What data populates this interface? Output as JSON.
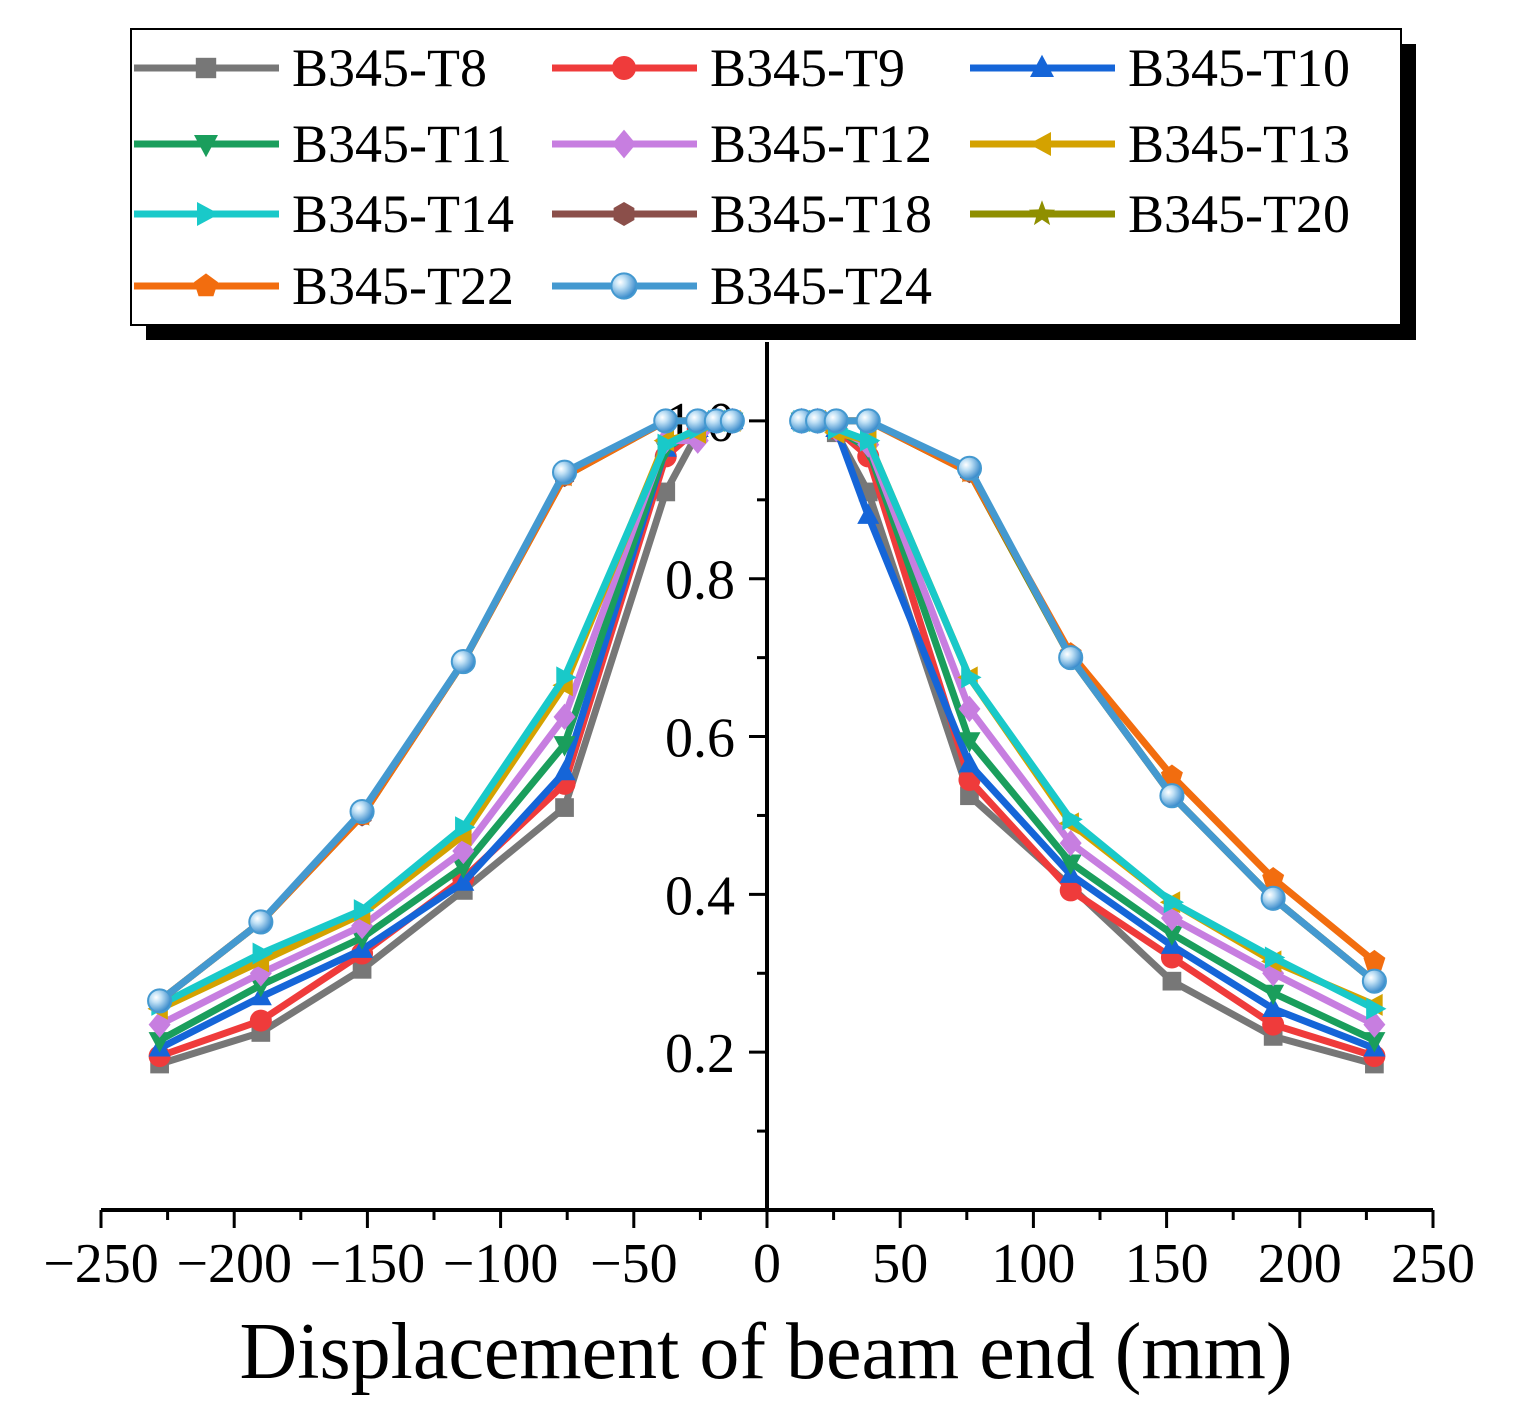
{
  "chart_data": {
    "type": "line",
    "title": "",
    "xlabel": "Displacement of beam end (mm)",
    "ylabel": "",
    "xlim": [
      -250,
      250
    ],
    "ylim": [
      0,
      1.1
    ],
    "x_ticks": [
      "−250",
      "−200",
      "−150",
      "−100",
      "−50",
      "0",
      "50",
      "100",
      "150",
      "200",
      "250"
    ],
    "x_tick_values": [
      -250,
      -200,
      -150,
      -100,
      -50,
      0,
      50,
      100,
      150,
      200,
      250
    ],
    "y_ticks": [
      "0.2",
      "0.4",
      "0.6",
      "0.8",
      "1.0"
    ],
    "y_tick_values": [
      0.2,
      0.4,
      0.6,
      0.8,
      1.0
    ],
    "legend_position": "top",
    "series": [
      {
        "name": "B345-T8",
        "color": "#777777",
        "marker": "square",
        "x": [
          -228,
          -190,
          -152,
          -114,
          -76,
          -38,
          -26,
          -19,
          -13,
          13,
          19,
          26,
          38,
          76,
          114,
          152,
          190,
          228
        ],
        "y": [
          0.185,
          0.225,
          0.305,
          0.405,
          0.51,
          0.91,
          0.985,
          1.0,
          1.0,
          1.0,
          1.0,
          0.985,
          0.91,
          0.525,
          0.41,
          0.29,
          0.22,
          0.185
        ]
      },
      {
        "name": "B345-T9",
        "color": "#ef3b3b",
        "marker": "circle",
        "x": [
          -228,
          -190,
          -152,
          -114,
          -76,
          -38,
          -26,
          -19,
          -13,
          13,
          19,
          26,
          38,
          76,
          114,
          152,
          190,
          228
        ],
        "y": [
          0.195,
          0.24,
          0.325,
          0.42,
          0.54,
          0.955,
          0.99,
          1.0,
          1.0,
          1.0,
          1.0,
          0.99,
          0.955,
          0.545,
          0.405,
          0.32,
          0.235,
          0.195
        ]
      },
      {
        "name": "B345-T10",
        "color": "#1565d8",
        "marker": "triangle-up",
        "x": [
          -228,
          -190,
          -152,
          -114,
          -76,
          -38,
          -26,
          -19,
          -13,
          13,
          19,
          26,
          38,
          76,
          114,
          152,
          190,
          228
        ],
        "y": [
          0.205,
          0.27,
          0.33,
          0.415,
          0.555,
          0.965,
          0.99,
          1.0,
          1.0,
          1.0,
          1.0,
          0.99,
          0.88,
          0.565,
          0.425,
          0.335,
          0.255,
          0.205
        ]
      },
      {
        "name": "B345-T11",
        "color": "#1a9e5c",
        "marker": "triangle-down",
        "x": [
          -228,
          -190,
          -152,
          -114,
          -76,
          -38,
          -26,
          -19,
          -13,
          13,
          19,
          26,
          38,
          76,
          114,
          152,
          190,
          228
        ],
        "y": [
          0.215,
          0.285,
          0.345,
          0.435,
          0.59,
          0.965,
          0.99,
          1.0,
          1.0,
          1.0,
          1.0,
          0.99,
          0.965,
          0.595,
          0.44,
          0.35,
          0.275,
          0.215
        ]
      },
      {
        "name": "B345-T12",
        "color": "#c77ee0",
        "marker": "diamond",
        "x": [
          -228,
          -190,
          -152,
          -114,
          -76,
          -38,
          -26,
          -19,
          -13,
          13,
          19,
          26,
          38,
          76,
          114,
          152,
          190,
          228
        ],
        "y": [
          0.235,
          0.3,
          0.36,
          0.455,
          0.625,
          0.975,
          0.975,
          1.0,
          1.0,
          1.0,
          1.0,
          0.99,
          0.97,
          0.635,
          0.465,
          0.37,
          0.3,
          0.235
        ]
      },
      {
        "name": "B345-T13",
        "color": "#d4a200",
        "marker": "triangle-left",
        "x": [
          -228,
          -190,
          -152,
          -114,
          -76,
          -38,
          -26,
          -19,
          -13,
          13,
          19,
          26,
          38,
          76,
          114,
          152,
          190,
          228
        ],
        "y": [
          0.255,
          0.315,
          0.375,
          0.475,
          0.665,
          0.975,
          0.985,
          1.0,
          1.0,
          1.0,
          1.0,
          0.985,
          0.975,
          0.675,
          0.49,
          0.39,
          0.315,
          0.26
        ]
      },
      {
        "name": "B345-T14",
        "color": "#19c9c9",
        "marker": "triangle-right",
        "x": [
          -228,
          -190,
          -152,
          -114,
          -76,
          -38,
          -26,
          -19,
          -13,
          13,
          19,
          26,
          38,
          76,
          114,
          152,
          190,
          228
        ],
        "y": [
          0.26,
          0.325,
          0.38,
          0.485,
          0.675,
          0.97,
          0.99,
          1.0,
          1.0,
          1.0,
          1.0,
          0.99,
          0.975,
          0.675,
          0.495,
          0.39,
          0.32,
          0.255
        ]
      },
      {
        "name": "B345-T18",
        "color": "#8b4f4a",
        "marker": "hexagon",
        "x": [
          -228,
          -190,
          -152,
          -114,
          -76,
          -38,
          -26,
          -19,
          -13,
          13,
          19,
          26,
          38,
          76,
          114,
          152,
          190,
          228
        ],
        "y": [
          0.265,
          0.365,
          0.5,
          0.695,
          0.93,
          1.0,
          1.0,
          1.0,
          1.0,
          1.0,
          1.0,
          1.0,
          1.0,
          0.935,
          0.7,
          0.525,
          0.395,
          0.29
        ]
      },
      {
        "name": "B345-T20",
        "color": "#8f8f00",
        "marker": "star",
        "x": [
          -228,
          -190,
          -152,
          -114,
          -76,
          -38,
          -26,
          -19,
          -13,
          13,
          19,
          26,
          38,
          76,
          114,
          152,
          190,
          228
        ],
        "y": [
          0.265,
          0.365,
          0.5,
          0.695,
          0.93,
          1.0,
          1.0,
          1.0,
          1.0,
          1.0,
          1.0,
          1.0,
          1.0,
          0.935,
          0.7,
          0.525,
          0.395,
          0.29
        ]
      },
      {
        "name": "B345-T22",
        "color": "#f26d0f",
        "marker": "pentagon",
        "x": [
          -228,
          -190,
          -152,
          -114,
          -76,
          -38,
          -26,
          -19,
          -13,
          13,
          19,
          26,
          38,
          76,
          114,
          152,
          190,
          228
        ],
        "y": [
          0.265,
          0.365,
          0.5,
          0.695,
          0.93,
          1.0,
          1.0,
          1.0,
          1.0,
          1.0,
          1.0,
          1.0,
          1.0,
          0.935,
          0.705,
          0.55,
          0.42,
          0.315
        ]
      },
      {
        "name": "B345-T24",
        "color": "#4499d0",
        "marker": "sphere",
        "x": [
          -228,
          -190,
          -152,
          -114,
          -76,
          -38,
          -26,
          -19,
          -13,
          13,
          19,
          26,
          38,
          76,
          114,
          152,
          190,
          228
        ],
        "y": [
          0.265,
          0.365,
          0.505,
          0.695,
          0.935,
          1.0,
          1.0,
          1.0,
          1.0,
          1.0,
          1.0,
          1.0,
          1.0,
          0.94,
          0.7,
          0.525,
          0.395,
          0.29
        ]
      }
    ]
  }
}
